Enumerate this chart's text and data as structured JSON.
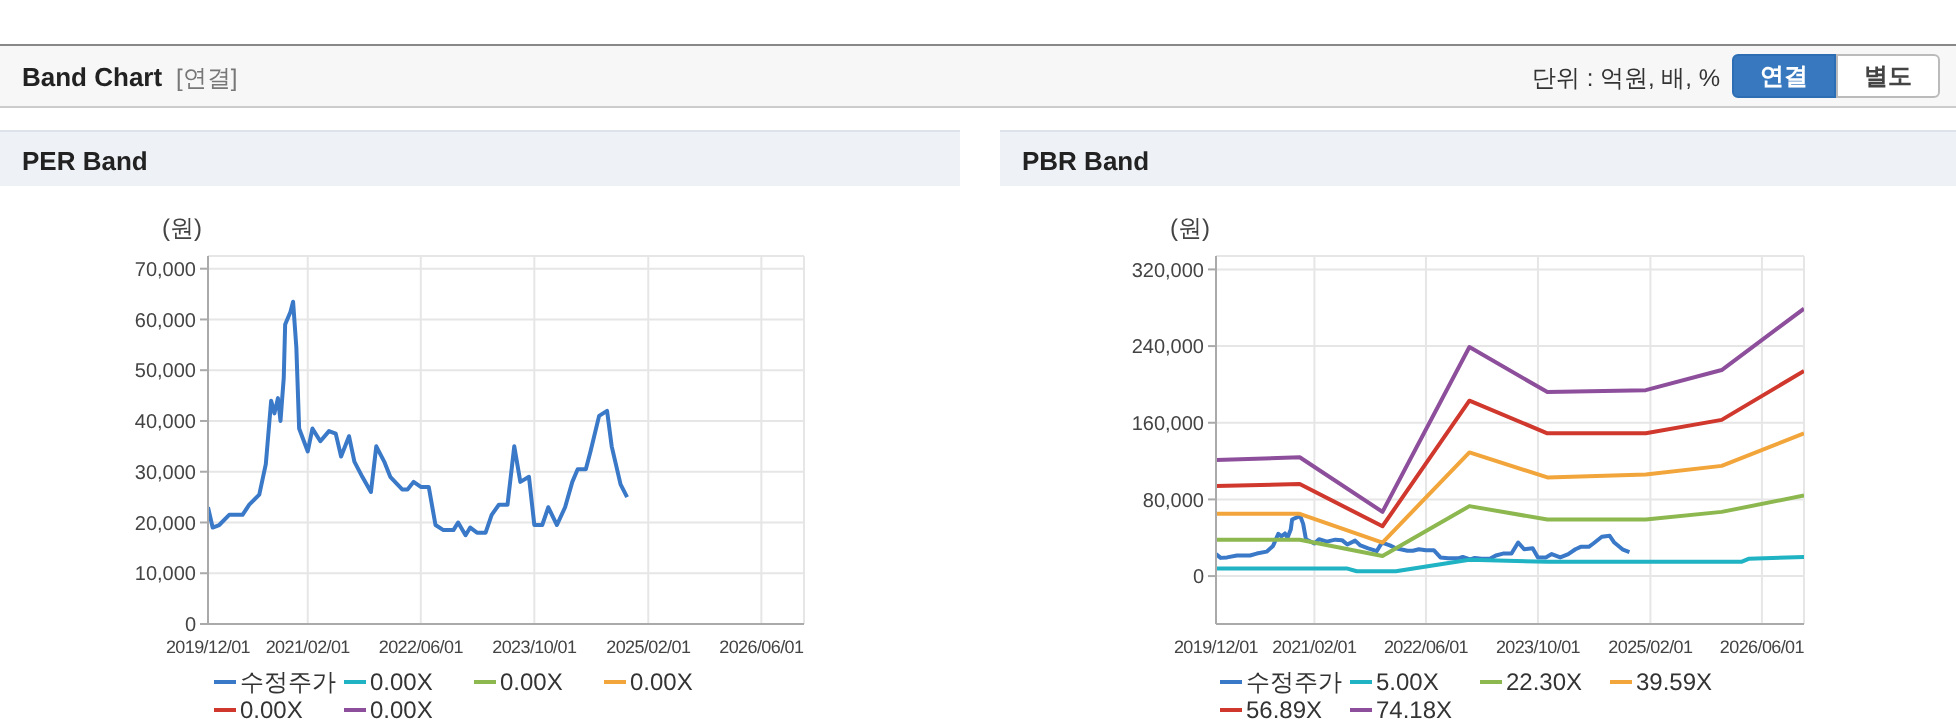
{
  "chart_data": [
    {
      "type": "other",
      "title": "Band Chart",
      "annotations": [
        "[연결]",
        "단위 : 억원, 배, %",
        "연결",
        "별도"
      ]
    },
    {
      "type": "line",
      "title": "PER Band",
      "ylabel": "(원)",
      "grid": true,
      "legend": "bottom",
      "marker": "none",
      "xlim": [
        "2019-12-01",
        "2026-12-01"
      ],
      "xticks": [
        {
          "value": "2019-12-01",
          "label": "2019/12/01"
        },
        {
          "value": "2021-02-01",
          "label": "2021/02/01"
        },
        {
          "value": "2022-06-01",
          "label": "2022/06/01"
        },
        {
          "value": "2023-10-01",
          "label": "2023/10/01"
        },
        {
          "value": "2025-02-01",
          "label": "2025/02/01"
        },
        {
          "value": "2026-06-01",
          "label": "2026/06/01"
        }
      ],
      "ylim": [
        0,
        72500
      ],
      "yticks": [
        0,
        {
          "value": 10000,
          "label": "10,000"
        },
        {
          "value": 20000,
          "label": "20,000"
        },
        {
          "value": 30000,
          "label": "30,000"
        },
        {
          "value": 40000,
          "label": "40,000"
        },
        {
          "value": 50000,
          "label": "50,000"
        },
        {
          "value": 60000,
          "label": "60,000"
        },
        {
          "value": 70000,
          "label": "70,000"
        }
      ],
      "x": [
        "2019-12-01",
        "2019-12-21",
        "2020-01-18",
        "2020-03-01",
        "2020-04-27",
        "2020-05-26",
        "2020-07-08",
        "2020-08-05",
        "2020-08-28",
        "2020-09-11",
        "2020-09-26",
        "2020-10-07",
        "2020-10-21",
        "2020-10-27",
        "2020-11-19",
        "2020-11-30",
        "2020-12-14",
        "2020-12-26",
        "2021-02-01",
        "2021-02-21",
        "2021-03-27",
        "2021-05-03",
        "2021-06-01",
        "2021-06-24",
        "2021-07-28",
        "2021-08-20",
        "2021-09-23",
        "2021-10-30",
        "2021-11-22",
        "2021-12-26",
        "2022-01-21",
        "2022-03-13",
        "2022-04-05",
        "2022-05-01",
        "2022-06-01",
        "2022-07-05",
        "2022-08-03",
        "2022-09-06",
        "2022-10-19",
        "2022-11-08",
        "2022-12-10",
        "2022-12-30",
        "2023-01-28",
        "2023-03-06",
        "2023-04-01",
        "2023-05-02",
        "2023-06-08",
        "2023-07-07",
        "2023-08-02",
        "2023-09-08",
        "2023-10-01",
        "2023-11-04",
        "2023-11-30",
        "2024-01-06",
        "2024-02-10",
        "2024-03-12",
        "2024-04-04",
        "2024-05-09",
        "2024-05-29",
        "2024-07-05",
        "2024-08-08",
        "2024-08-28",
        "2024-10-05",
        "2024-11-02"
      ],
      "series": [
        {
          "name": "수정주가",
          "color": "#3a78c8",
          "values": [
            23000,
            19000,
            19500,
            21500,
            21500,
            23500,
            25500,
            31500,
            44000,
            41500,
            44500,
            40000,
            48500,
            59000,
            61500,
            63500,
            54500,
            38500,
            34000,
            38500,
            36000,
            38000,
            37500,
            33000,
            37000,
            32000,
            29000,
            26000,
            35000,
            32000,
            29000,
            26500,
            26500,
            28000,
            27000,
            27000,
            19500,
            18500,
            18500,
            20000,
            17500,
            19000,
            18000,
            18000,
            21500,
            23500,
            23500,
            35000,
            28000,
            29000,
            19500,
            19500,
            23000,
            19500,
            23000,
            28000,
            30500,
            30500,
            34000,
            41000,
            42000,
            35000,
            27500,
            25000
          ]
        },
        {
          "name": "0.00X",
          "color": "#1fb3c3",
          "values": [
            null,
            null,
            null,
            null,
            null,
            null,
            null,
            null,
            null,
            null,
            null,
            null,
            null,
            null,
            null,
            null,
            null,
            null,
            null,
            null,
            null,
            null,
            null,
            null,
            null,
            null,
            null,
            null,
            null,
            null,
            null,
            null,
            null,
            null,
            null,
            null,
            null,
            null,
            null,
            null,
            null,
            null,
            null,
            null,
            null,
            null,
            null,
            null,
            null,
            null,
            null,
            null,
            null,
            null,
            null,
            null,
            null,
            null,
            null,
            null,
            null,
            null,
            null,
            null
          ]
        },
        {
          "name": "0.00X",
          "color": "#8cb84f",
          "values": [
            null,
            null,
            null,
            null,
            null,
            null,
            null,
            null,
            null,
            null,
            null,
            null,
            null,
            null,
            null,
            null,
            null,
            null,
            null,
            null,
            null,
            null,
            null,
            null,
            null,
            null,
            null,
            null,
            null,
            null,
            null,
            null,
            null,
            null,
            null,
            null,
            null,
            null,
            null,
            null,
            null,
            null,
            null,
            null,
            null,
            null,
            null,
            null,
            null,
            null,
            null,
            null,
            null,
            null,
            null,
            null,
            null,
            null,
            null,
            null,
            null,
            null,
            null,
            null
          ]
        },
        {
          "name": "0.00X",
          "color": "#f2a53a",
          "values": [
            null,
            null,
            null,
            null,
            null,
            null,
            null,
            null,
            null,
            null,
            null,
            null,
            null,
            null,
            null,
            null,
            null,
            null,
            null,
            null,
            null,
            null,
            null,
            null,
            null,
            null,
            null,
            null,
            null,
            null,
            null,
            null,
            null,
            null,
            null,
            null,
            null,
            null,
            null,
            null,
            null,
            null,
            null,
            null,
            null,
            null,
            null,
            null,
            null,
            null,
            null,
            null,
            null,
            null,
            null,
            null,
            null,
            null,
            null,
            null,
            null,
            null,
            null,
            null
          ]
        },
        {
          "name": "0.00X",
          "color": "#d0382e",
          "values": [
            null,
            null,
            null,
            null,
            null,
            null,
            null,
            null,
            null,
            null,
            null,
            null,
            null,
            null,
            null,
            null,
            null,
            null,
            null,
            null,
            null,
            null,
            null,
            null,
            null,
            null,
            null,
            null,
            null,
            null,
            null,
            null,
            null,
            null,
            null,
            null,
            null,
            null,
            null,
            null,
            null,
            null,
            null,
            null,
            null,
            null,
            null,
            null,
            null,
            null,
            null,
            null,
            null,
            null,
            null,
            null,
            null,
            null,
            null,
            null,
            null,
            null,
            null,
            null
          ]
        },
        {
          "name": "0.00X",
          "color": "#8d4f9b",
          "values": [
            null,
            null,
            null,
            null,
            null,
            null,
            null,
            null,
            null,
            null,
            null,
            null,
            null,
            null,
            null,
            null,
            null,
            null,
            null,
            null,
            null,
            null,
            null,
            null,
            null,
            null,
            null,
            null,
            null,
            null,
            null,
            null,
            null,
            null,
            null,
            null,
            null,
            null,
            null,
            null,
            null,
            null,
            null,
            null,
            null,
            null,
            null,
            null,
            null,
            null,
            null,
            null,
            null,
            null,
            null,
            null,
            null,
            null,
            null,
            null,
            null,
            null,
            null,
            null
          ]
        }
      ]
    },
    {
      "type": "line",
      "title": "PBR Band",
      "ylabel": "(원)",
      "grid": true,
      "legend": "bottom",
      "marker": "none",
      "xlim": [
        "2019-12-01",
        "2026-12-01"
      ],
      "xticks": [
        {
          "value": "2019-12-01",
          "label": "2019/12/01"
        },
        {
          "value": "2021-02-01",
          "label": "2021/02/01"
        },
        {
          "value": "2022-06-01",
          "label": "2022/06/01"
        },
        {
          "value": "2023-10-01",
          "label": "2023/10/01"
        },
        {
          "value": "2025-02-01",
          "label": "2025/02/01"
        },
        {
          "value": "2026-06-01",
          "label": "2026/06/01"
        }
      ],
      "ylim": [
        -50000,
        334000
      ],
      "yticks": [
        0,
        {
          "value": 80000,
          "label": "80,000"
        },
        {
          "value": 160000,
          "label": "160,000"
        },
        {
          "value": 240000,
          "label": "240,000"
        },
        {
          "value": 320000,
          "label": "320,000"
        }
      ],
      "x": [
        "2019-12-01",
        "2020-11-29",
        "2021-11-24",
        "2022-12-07",
        "2023-11-11",
        "2025-01-12",
        "2025-12-08",
        "2026-12-01"
      ],
      "series": [
        {
          "name": "수정주가",
          "color": "#3a78c8",
          "x": [
            "2019-12-01",
            "2019-12-21",
            "2020-01-18",
            "2020-03-01",
            "2020-04-27",
            "2020-05-26",
            "2020-07-08",
            "2020-08-05",
            "2020-08-28",
            "2020-09-11",
            "2020-09-26",
            "2020-10-07",
            "2020-10-21",
            "2020-10-27",
            "2020-11-19",
            "2020-11-30",
            "2020-12-14",
            "2020-12-26",
            "2021-02-01",
            "2021-02-21",
            "2021-03-27",
            "2021-05-03",
            "2021-06-01",
            "2021-06-24",
            "2021-07-28",
            "2021-08-20",
            "2021-09-23",
            "2021-10-30",
            "2021-11-22",
            "2021-12-26",
            "2022-01-21",
            "2022-03-13",
            "2022-04-05",
            "2022-05-01",
            "2022-06-01",
            "2022-07-05",
            "2022-08-03",
            "2022-09-06",
            "2022-10-19",
            "2022-11-08",
            "2022-12-10",
            "2022-12-30",
            "2023-01-28",
            "2023-03-06",
            "2023-04-01",
            "2023-05-02",
            "2023-06-08",
            "2023-07-07",
            "2023-08-02",
            "2023-09-08",
            "2023-10-01",
            "2023-11-04",
            "2023-11-30",
            "2024-01-06",
            "2024-02-10",
            "2024-03-12",
            "2024-04-04",
            "2024-05-09",
            "2024-05-29",
            "2024-07-05",
            "2024-08-08",
            "2024-08-28",
            "2024-10-05",
            "2024-11-02"
          ],
          "values": [
            23000,
            19000,
            19500,
            21500,
            21500,
            23500,
            25500,
            31500,
            44000,
            41500,
            44500,
            40000,
            48500,
            59000,
            61500,
            63500,
            54500,
            38500,
            34000,
            38500,
            36000,
            38000,
            37500,
            33000,
            37000,
            32000,
            29000,
            26000,
            35000,
            32000,
            29000,
            26500,
            26500,
            28000,
            27000,
            27000,
            19500,
            18500,
            18500,
            20000,
            17500,
            19000,
            18000,
            18000,
            21500,
            23500,
            23500,
            35000,
            28000,
            29000,
            19500,
            19500,
            23000,
            19500,
            23000,
            28000,
            30500,
            30500,
            34000,
            41000,
            42000,
            35000,
            27500,
            25000
          ]
        },
        {
          "name": "5.00X",
          "color": "#1fb3c3",
          "x": [
            "2019-12-01",
            "2021-06-21",
            "2021-08-04",
            "2022-01-21",
            "2022-12-07",
            "2023-11-11",
            "2026-03-06",
            "2026-04-04",
            "2026-12-01"
          ],
          "values": [
            8000,
            8000,
            5000,
            5000,
            17000,
            15000,
            15000,
            18000,
            20000
          ]
        },
        {
          "name": "22.30X",
          "color": "#8cb84f",
          "values": [
            38000,
            38000,
            21000,
            73000,
            59000,
            59000,
            67000,
            84000
          ]
        },
        {
          "name": "39.59X",
          "color": "#f2a53a",
          "values": [
            65000,
            65000,
            35000,
            129000,
            103000,
            106000,
            115000,
            149000
          ]
        },
        {
          "name": "56.89X",
          "color": "#d0382e",
          "values": [
            94000,
            96000,
            52000,
            183000,
            149000,
            149000,
            163000,
            214000
          ]
        },
        {
          "name": "74.18X",
          "color": "#8d4f9b",
          "values": [
            121000,
            124000,
            67000,
            239000,
            192000,
            194000,
            215000,
            279000
          ]
        }
      ]
    }
  ]
}
